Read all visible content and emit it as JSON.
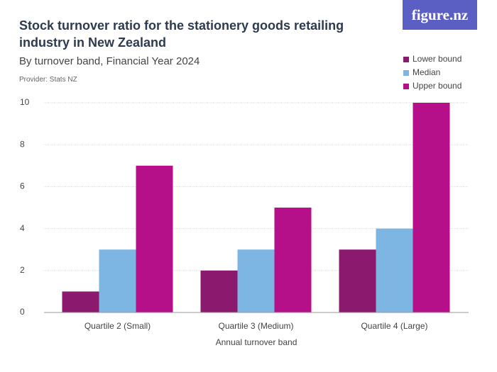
{
  "chart_data": {
    "type": "bar",
    "title": "Stock turnover ratio for the stationery goods retailing industry in New Zealand",
    "subtitle": "By turnover band, Financial Year 2024",
    "source": "Provider: Stats NZ",
    "logo": "figure.nz",
    "x_label": "Annual turnover band",
    "categories": [
      "Quartile 2 (Small)",
      "Quartile 3 (Medium)",
      "Quartile 4 (Large)"
    ],
    "series": [
      {
        "name": "Lower bound",
        "color": "#8b1a6f",
        "values": [
          1,
          2,
          3
        ]
      },
      {
        "name": "Median",
        "color": "#7db5e3",
        "values": [
          3,
          3,
          4
        ]
      },
      {
        "name": "Upper bound",
        "color": "#b50f8a",
        "values": [
          7,
          5,
          10
        ]
      }
    ],
    "ylim": [
      0,
      10
    ],
    "yticks": [
      0,
      2,
      4,
      6,
      8,
      10
    ],
    "grid": true,
    "legend": "top-right"
  }
}
